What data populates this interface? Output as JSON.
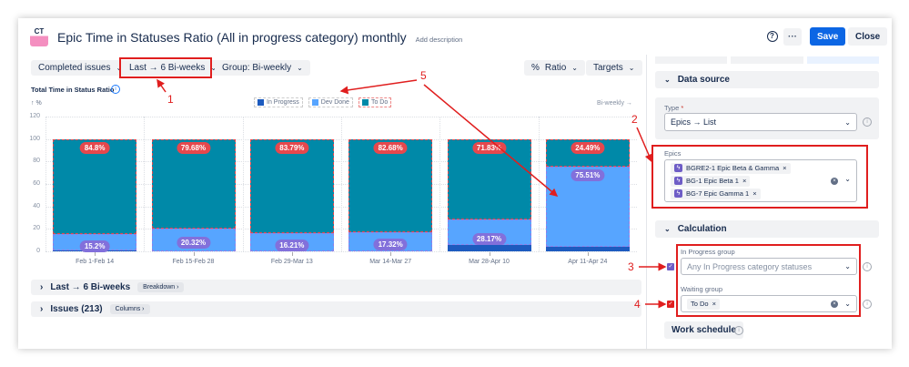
{
  "header": {
    "logo_text": "CT",
    "title": "Epic Time in Statuses Ratio (All in progress category) monthly",
    "add_description": "Add description",
    "save_label": "Save",
    "close_label": "Close",
    "more_label": "···",
    "help_icon": "question-circle-icon"
  },
  "toolbar": {
    "completed": "Completed issues",
    "range": "Last → 6 Bi-weeks",
    "group": "Group: Bi-weekly",
    "ratio": "Ratio",
    "targets": "Targets"
  },
  "chart_data": {
    "type": "bar",
    "stacked": true,
    "title": "Total Time in Status Ratio",
    "ylabel": "↑ %",
    "xlabel": "Bi-weekly →",
    "ylim": [
      0,
      120
    ],
    "yticks": [
      "0",
      "20",
      "40",
      "60",
      "80",
      "100",
      "120"
    ],
    "grid": true,
    "legend_position": "top-center",
    "categories": [
      "Feb 1-Feb 14",
      "Feb 15-Feb 28",
      "Feb 29-Mar 13",
      "Mar 14-Mar 27",
      "Mar 28-Apr 10",
      "Apr 11-Apr 24"
    ],
    "series": [
      {
        "name": "In Progress",
        "color": "#1d5bbf",
        "values": [
          1,
          0,
          0,
          0,
          6,
          4
        ]
      },
      {
        "name": "Dev Done",
        "color": "#57a5ff",
        "values": [
          14.2,
          20.32,
          16.21,
          17.32,
          22.17,
          71.51
        ]
      },
      {
        "name": "To Do",
        "color": "#0089a8",
        "values": [
          84.8,
          79.68,
          83.79,
          82.68,
          71.83,
          24.49
        ]
      }
    ],
    "todo_labels": [
      "84.8%",
      "79.68%",
      "83.79%",
      "82.68%",
      "71.83%",
      "24.49%"
    ],
    "devdone_labels": [
      "15.2%",
      "20.32%",
      "16.21%",
      "17.32%",
      "28.17%",
      "75.51%"
    ]
  },
  "sections": {
    "breakdown_title": "Last → 6 Bi-weeks",
    "breakdown_btn": "Breakdown",
    "issues_title": "Issues (213)",
    "columns_btn": "Columns"
  },
  "panel": {
    "data_source": "Data source",
    "type_label": "Type",
    "required": "*",
    "type_value": "Epics → List",
    "epics_label": "Epics",
    "epics": [
      "BGRE2-1 Epic Beta & Gamma",
      "BG-1 Epic Beta 1",
      "BG-7 Epic Gamma 1"
    ],
    "calculation": "Calculation",
    "in_progress_label": "In Progress group",
    "in_progress_placeholder": "Any In Progress category statuses",
    "waiting_label": "Waiting group",
    "waiting_value": "To Do",
    "work_schedule": "Work schedule"
  },
  "annotations": [
    "1",
    "2",
    "3",
    "4",
    "5"
  ]
}
